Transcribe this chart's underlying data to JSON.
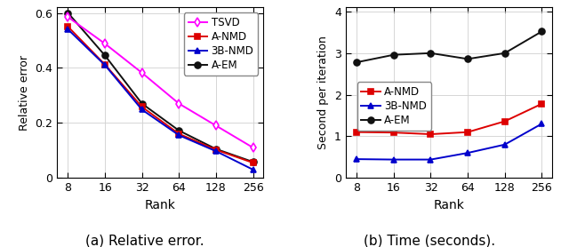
{
  "ranks": [
    8,
    16,
    32,
    64,
    128,
    256
  ],
  "left": {
    "ylabel": "Relative error",
    "xlabel": "Rank",
    "caption": "(a) Relative error.",
    "ylim": [
      0,
      0.62
    ],
    "yticks": [
      0,
      0.2,
      0.4,
      0.6
    ],
    "ytick_labels": [
      "0",
      "0.2",
      "0.4",
      "0.6"
    ],
    "series": {
      "TSVD": {
        "values": [
          0.585,
          0.488,
          0.382,
          0.27,
          0.19,
          0.11
        ],
        "color": "#ff00ff",
        "marker": "d",
        "zorder": 3
      },
      "A-NMD": {
        "values": [
          0.55,
          0.412,
          0.258,
          0.16,
          0.102,
          0.055
        ],
        "color": "#dd0000",
        "marker": "s",
        "zorder": 4
      },
      "3B-NMD": {
        "values": [
          0.54,
          0.41,
          0.248,
          0.155,
          0.097,
          0.03
        ],
        "color": "#0000cc",
        "marker": "^",
        "zorder": 5
      },
      "A-EM": {
        "values": [
          0.6,
          0.445,
          0.27,
          0.172,
          0.105,
          0.058
        ],
        "color": "#111111",
        "marker": "o",
        "zorder": 2
      }
    }
  },
  "right": {
    "ylabel": "Second per iteration",
    "xlabel": "Rank",
    "caption": "(b) Time (seconds).",
    "ylim": [
      0,
      4.1
    ],
    "yticks": [
      0,
      1,
      2,
      3,
      4
    ],
    "ytick_labels": [
      "0",
      "1",
      "2",
      "3",
      "4"
    ],
    "series": {
      "A-NMD": {
        "values": [
          1.1,
          1.09,
          1.05,
          1.1,
          1.36,
          1.78
        ],
        "color": "#dd0000",
        "marker": "s",
        "zorder": 4
      },
      "3B-NMD": {
        "values": [
          0.45,
          0.44,
          0.44,
          0.6,
          0.8,
          1.3
        ],
        "color": "#0000cc",
        "marker": "^",
        "zorder": 5
      },
      "A-EM": {
        "values": [
          2.78,
          2.96,
          3.0,
          2.86,
          3.0,
          3.52
        ],
        "color": "#111111",
        "marker": "o",
        "zorder": 2
      }
    }
  }
}
